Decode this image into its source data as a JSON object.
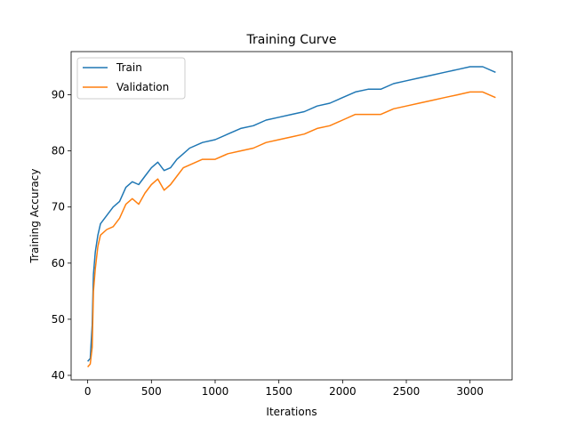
{
  "chart_data": {
    "type": "line",
    "title": "Training Curve",
    "xlabel": "Iterations",
    "ylabel": "Training Accuracy",
    "xlim": [
      -130,
      3330
    ],
    "ylim": [
      39.2,
      97.7
    ],
    "xticks": [
      0,
      500,
      1000,
      1500,
      2000,
      2500,
      3000
    ],
    "yticks": [
      40,
      50,
      60,
      70,
      80,
      90
    ],
    "grid": false,
    "legend_position": "top-left",
    "series": [
      {
        "name": "Train",
        "color": "#1f77b4",
        "x": [
          0,
          20,
          35,
          45,
          60,
          80,
          100,
          150,
          200,
          250,
          300,
          350,
          400,
          450,
          500,
          550,
          600,
          650,
          700,
          750,
          800,
          900,
          1000,
          1100,
          1200,
          1300,
          1400,
          1500,
          1600,
          1700,
          1800,
          1900,
          2000,
          2100,
          2200,
          2300,
          2400,
          2500,
          2600,
          2700,
          2800,
          2900,
          3000,
          3100,
          3200
        ],
        "values": [
          42.5,
          43,
          49,
          58,
          62,
          65,
          67,
          68.5,
          70,
          71,
          73.5,
          74.5,
          74,
          75.5,
          77,
          78,
          76.5,
          77,
          78.5,
          79.5,
          80.5,
          81.5,
          82,
          83,
          84,
          84.5,
          85.5,
          86,
          86.5,
          87,
          88,
          88.5,
          89.5,
          90.5,
          91,
          91,
          92,
          92.5,
          93,
          93.5,
          94,
          94.5,
          95,
          95,
          94
        ]
      },
      {
        "name": "Validation",
        "color": "#ff7f0e",
        "x": [
          0,
          20,
          35,
          45,
          60,
          80,
          100,
          150,
          200,
          250,
          300,
          350,
          400,
          450,
          500,
          550,
          600,
          650,
          700,
          750,
          800,
          900,
          1000,
          1100,
          1200,
          1300,
          1400,
          1500,
          1600,
          1700,
          1800,
          1900,
          2000,
          2100,
          2200,
          2300,
          2400,
          2500,
          2600,
          2700,
          2800,
          2900,
          3000,
          3100,
          3200
        ],
        "values": [
          41.5,
          42,
          45,
          55,
          59,
          63,
          65,
          66,
          66.5,
          68,
          70.5,
          71.5,
          70.5,
          72.5,
          74,
          75,
          73,
          74,
          75.5,
          77,
          77.5,
          78.5,
          78.5,
          79.5,
          80,
          80.5,
          81.5,
          82,
          82.5,
          83,
          84,
          84.5,
          85.5,
          86.5,
          86.5,
          86.5,
          87.5,
          88,
          88.5,
          89,
          89.5,
          90,
          90.5,
          90.5,
          89.5
        ]
      }
    ]
  }
}
